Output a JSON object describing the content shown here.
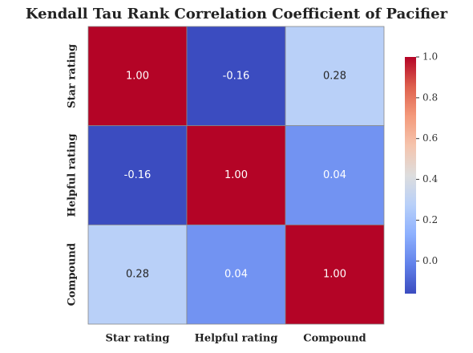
{
  "chart_data": {
    "type": "heatmap",
    "title": "Kendall Tau Rank Correlation Coefficient of Pacifier",
    "x_categories": [
      "Star rating",
      "Helpful rating",
      "Compound"
    ],
    "y_categories": [
      "Star rating",
      "Helpful rating",
      "Compound"
    ],
    "values": [
      [
        1.0,
        -0.16,
        0.28
      ],
      [
        -0.16,
        1.0,
        0.04
      ],
      [
        0.28,
        0.04,
        1.0
      ]
    ],
    "value_labels": [
      [
        "1.00",
        "-0.16",
        "0.28"
      ],
      [
        "-0.16",
        "1.00",
        "0.04"
      ],
      [
        "0.28",
        "0.04",
        "1.00"
      ]
    ],
    "colormap": "coolwarm",
    "clim": [
      -0.16,
      1.0
    ],
    "cticks": [
      {
        "value": 0.0,
        "label": "0.0"
      },
      {
        "value": 0.2,
        "label": "0.2"
      },
      {
        "value": 0.4,
        "label": "0.4"
      },
      {
        "value": 0.6,
        "label": "0.6"
      },
      {
        "value": 0.8,
        "label": "0.8"
      },
      {
        "value": 1.0,
        "label": "1.0"
      }
    ]
  }
}
